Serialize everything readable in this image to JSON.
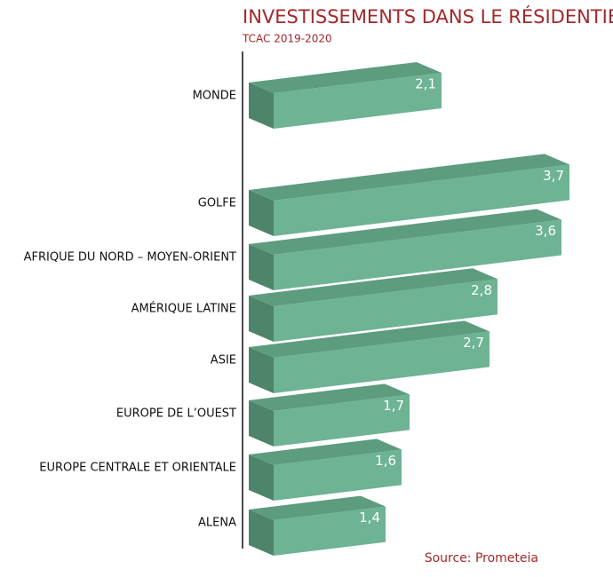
{
  "chart_data": {
    "type": "bar3d",
    "title": "INVESTISSEMENTS DANS LE RÉSIDENTIEL",
    "subtitle": "TCAC 2019-2020",
    "source": "Source: Prometeia",
    "categories": [
      "MONDE",
      "GOLFE",
      "AFRIQUE DU NORD – MOYEN-ORIENT",
      "AMÉRIQUE LATINE",
      "ASIE",
      "EUROPE DE L’OUEST",
      "EUROPE CENTRALE ET ORIENTALE",
      "ALENA"
    ],
    "values": [
      2.1,
      3.7,
      3.6,
      2.8,
      2.7,
      1.7,
      1.6,
      1.4
    ],
    "value_labels": [
      "2,1",
      "3,7",
      "3,6",
      "2,8",
      "2,7",
      "1,7",
      "1,6",
      "1,4"
    ],
    "colors": {
      "front": "#6db394",
      "top": "#5d9c7e",
      "side": "#4e8469"
    }
  }
}
